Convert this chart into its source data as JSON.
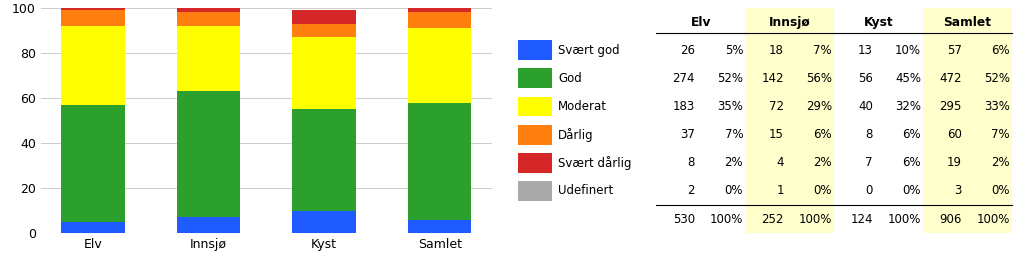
{
  "categories": [
    "Elv",
    "Innsjø",
    "Kyst",
    "Samlet"
  ],
  "series": [
    {
      "label": "Svært god",
      "color": "#1F5BFF",
      "pct": [
        5,
        7,
        10,
        6
      ]
    },
    {
      "label": "God",
      "color": "#2CA02C",
      "pct": [
        52,
        56,
        45,
        52
      ]
    },
    {
      "label": "Moderat",
      "color": "#FFFF00",
      "pct": [
        35,
        29,
        32,
        33
      ]
    },
    {
      "label": "Dårlig",
      "color": "#FF7F0E",
      "pct": [
        7,
        6,
        6,
        7
      ]
    },
    {
      "label": "Svært dårlig",
      "color": "#D62728",
      "pct": [
        2,
        2,
        6,
        2
      ]
    },
    {
      "label": "Udefinert",
      "color": "#AAAAAA",
      "pct": [
        0,
        0,
        0,
        0
      ]
    }
  ],
  "table": {
    "header_labels": [
      "Elv",
      "Innsjø",
      "Kyst",
      "Samlet"
    ],
    "rows": [
      {
        "label": "Svært god",
        "color": "#1F5BFF",
        "vals": [
          26,
          "5%",
          18,
          "7%",
          13,
          "10%",
          57,
          "6%"
        ]
      },
      {
        "label": "God",
        "color": "#2CA02C",
        "vals": [
          274,
          "52%",
          142,
          "56%",
          56,
          "45%",
          472,
          "52%"
        ]
      },
      {
        "label": "Moderat",
        "color": "#FFFF00",
        "vals": [
          183,
          "35%",
          72,
          "29%",
          40,
          "32%",
          295,
          "33%"
        ]
      },
      {
        "label": "Dårlig",
        "color": "#FF7F0E",
        "vals": [
          37,
          "7%",
          15,
          "6%",
          8,
          "6%",
          60,
          "7%"
        ]
      },
      {
        "label": "Svært dårlig",
        "color": "#D62728",
        "vals": [
          8,
          "2%",
          4,
          "2%",
          7,
          "6%",
          19,
          "2%"
        ]
      },
      {
        "label": "Udefinert",
        "color": "#AAAAAA",
        "vals": [
          2,
          "0%",
          1,
          "0%",
          0,
          "0%",
          3,
          "0%"
        ]
      }
    ],
    "totals": [
      530,
      "100%",
      252,
      "100%",
      124,
      "100%",
      906,
      "100%"
    ],
    "highlight_color": "#FFFFCC"
  },
  "ylim": [
    0,
    100
  ],
  "yticks": [
    0,
    20,
    40,
    60,
    80,
    100
  ],
  "bar_width": 0.55,
  "background_color": "#FFFFFF",
  "grid_color": "#CCCCCC",
  "font_size": 9
}
